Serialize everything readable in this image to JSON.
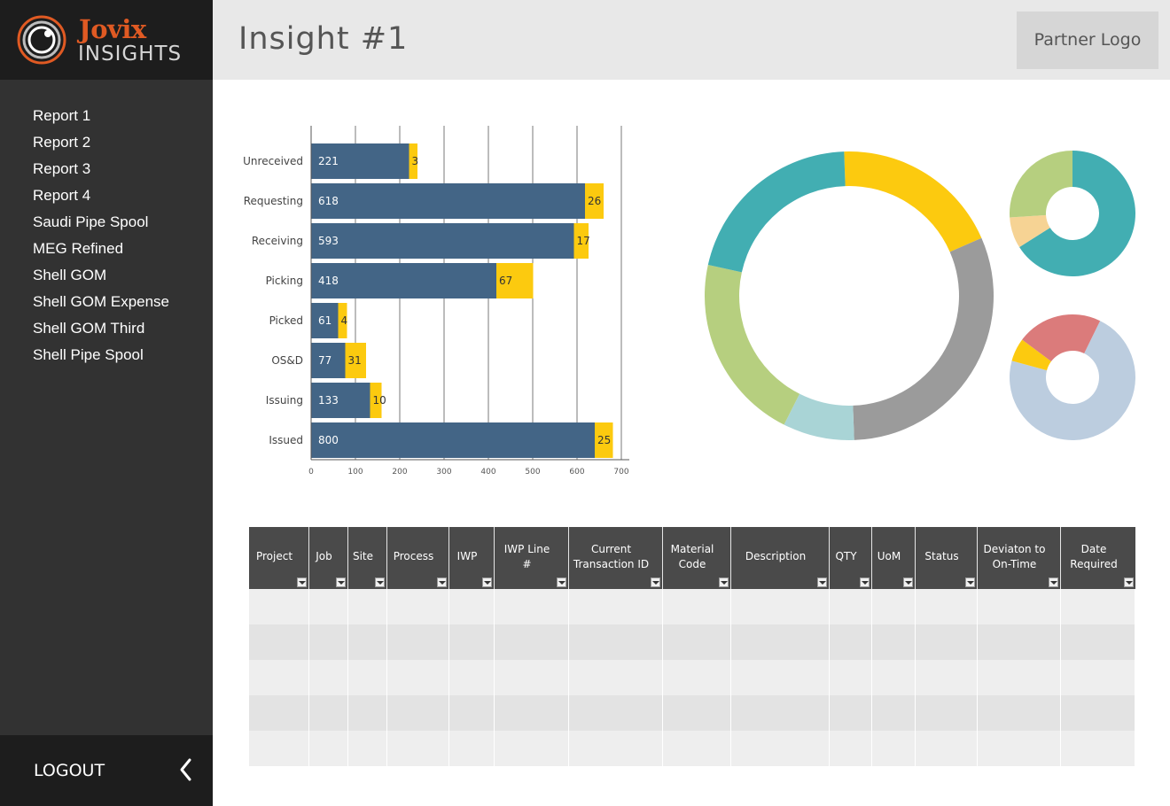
{
  "brand": {
    "name": "Jovix",
    "sub": "INSIGHTS"
  },
  "sidebar": {
    "items": [
      {
        "label": "Report 1"
      },
      {
        "label": "Report 2"
      },
      {
        "label": "Report 3"
      },
      {
        "label": "Report 4"
      },
      {
        "label": "Saudi Pipe Spool"
      },
      {
        "label": "MEG Refined"
      },
      {
        "label": "Shell GOM"
      },
      {
        "label": "Shell GOM Expense"
      },
      {
        "label": "Shell GOM Third"
      },
      {
        "label": "Shell Pipe Spool"
      }
    ],
    "logout_label": "LOGOUT"
  },
  "header": {
    "title": "Insight #1",
    "partner_logo": "Partner Logo"
  },
  "colors": {
    "sidebar_bg": "#323232",
    "brand_bg": "#1d1d1d",
    "header_bg": "#e8e8e8",
    "brand_orange": "#e05a23",
    "bar_blue": "#436586",
    "bar_yellow": "#fcca0f",
    "teal": "#42aeb2",
    "gray": "#9b9b9b",
    "light_blue": "#a9d4d6",
    "light_green": "#b6cf7f",
    "peach": "#f6d394",
    "red": "#db7b7b",
    "pale_blue": "#bccddf",
    "table_header": "#4a4a4a"
  },
  "chart_data": [
    {
      "type": "bar",
      "orientation": "horizontal",
      "stacked": true,
      "categories": [
        "Unreceived",
        "Requesting",
        "Receiving",
        "Picking",
        "Picked",
        "OS&D",
        "Issuing",
        "Issued"
      ],
      "series": [
        {
          "values": [
            221,
            618,
            593,
            418,
            61,
            77,
            133,
            800
          ]
        },
        {
          "values": [
            3,
            26,
            17,
            67,
            4,
            31,
            10,
            25
          ]
        }
      ],
      "xticks": [
        "0",
        "100",
        "200",
        "300",
        "400",
        "500",
        "600",
        "700"
      ],
      "grid": true
    },
    {
      "type": "pie",
      "donut": true,
      "slices": [
        {
          "color": "#fcca0f",
          "value": 19
        },
        {
          "color": "#9b9b9b",
          "value": 31
        },
        {
          "color": "#a9d4d6",
          "value": 8
        },
        {
          "color": "#b6cf7f",
          "value": 21
        },
        {
          "color": "#42aeb2",
          "value": 21
        }
      ]
    },
    {
      "type": "pie",
      "donut": true,
      "slices": [
        {
          "color": "#42aeb2",
          "value": 66
        },
        {
          "color": "#f6d394",
          "value": 8
        },
        {
          "color": "#b6cf7f",
          "value": 26
        }
      ]
    },
    {
      "type": "pie",
      "donut": true,
      "slices": [
        {
          "color": "#bccddf",
          "value": 72
        },
        {
          "color": "#fcca0f",
          "value": 6
        },
        {
          "color": "#db7b7b",
          "value": 22
        }
      ]
    }
  ],
  "table": {
    "columns": [
      {
        "label": "Project"
      },
      {
        "label": "Job"
      },
      {
        "label": "Site"
      },
      {
        "label": "Process"
      },
      {
        "label": "IWP"
      },
      {
        "label": "IWP Line #"
      },
      {
        "label": "Current Transaction ID"
      },
      {
        "label": "Material Code"
      },
      {
        "label": "Description"
      },
      {
        "label": "QTY"
      },
      {
        "label": "UoM"
      },
      {
        "label": "Status"
      },
      {
        "label": "Deviaton to On-Time"
      },
      {
        "label": "Date Required"
      }
    ],
    "row_count": 5
  }
}
